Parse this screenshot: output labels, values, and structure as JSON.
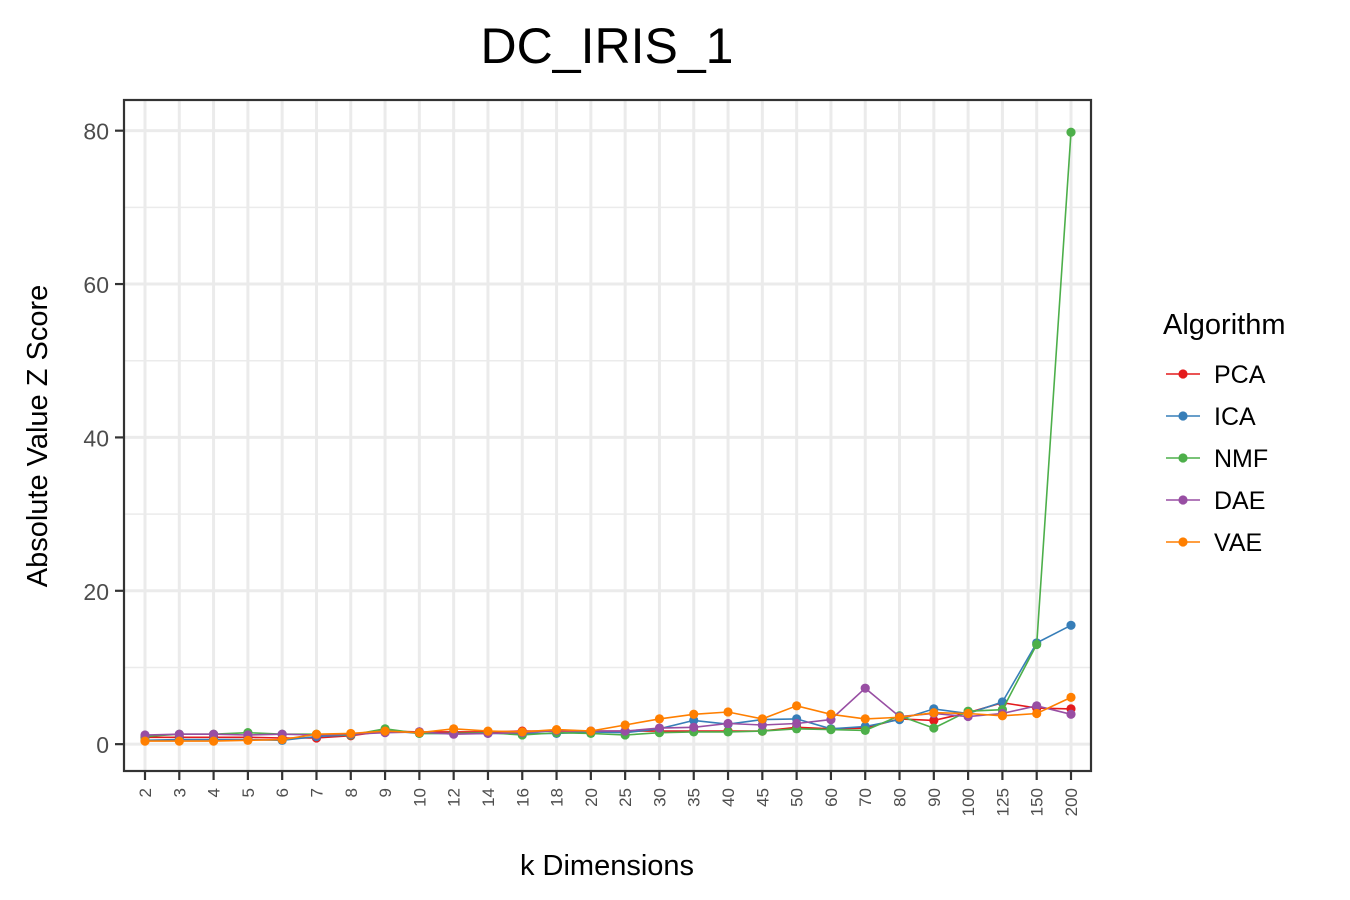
{
  "chart_data": {
    "type": "line",
    "title": "DC_IRIS_1",
    "xlabel": "k Dimensions",
    "ylabel": "Absolute Value Z Score",
    "ylim": [
      -3.5,
      84
    ],
    "yticks": [
      0,
      20,
      40,
      60,
      80
    ],
    "x": [
      "2",
      "3",
      "4",
      "5",
      "6",
      "7",
      "8",
      "9",
      "10",
      "12",
      "14",
      "16",
      "18",
      "20",
      "25",
      "30",
      "35",
      "40",
      "45",
      "50",
      "60",
      "70",
      "80",
      "90",
      "100",
      "125",
      "150",
      "200"
    ],
    "grid": true,
    "legend": {
      "title": "Algorithm",
      "position": "right"
    },
    "series": [
      {
        "name": "PCA",
        "color": "#E41A1C",
        "values": [
          0.9,
          0.9,
          0.9,
          0.9,
          0.8,
          0.8,
          1.1,
          1.7,
          1.6,
          1.6,
          1.6,
          1.7,
          1.7,
          1.7,
          1.7,
          1.7,
          1.7,
          1.7,
          1.7,
          2.2,
          2.0,
          2.1,
          3.3,
          3.1,
          4.1,
          5.4,
          4.7,
          4.6
        ]
      },
      {
        "name": "ICA",
        "color": "#377EB8",
        "values": [
          0.5,
          0.6,
          0.6,
          0.6,
          0.5,
          1.0,
          1.2,
          1.8,
          1.4,
          1.4,
          1.4,
          1.4,
          1.4,
          1.6,
          1.5,
          2.0,
          3.1,
          2.6,
          3.2,
          3.3,
          2.0,
          2.3,
          3.2,
          4.6,
          4.0,
          5.5,
          13.2,
          15.5
        ]
      },
      {
        "name": "NMF",
        "color": "#4DAF4A",
        "values": [
          1.0,
          1.3,
          1.3,
          1.5,
          1.3,
          1.3,
          1.2,
          2.0,
          1.4,
          1.4,
          1.5,
          1.2,
          1.5,
          1.4,
          1.2,
          1.5,
          1.6,
          1.6,
          1.7,
          2.0,
          1.9,
          1.8,
          3.7,
          2.1,
          4.3,
          4.5,
          13.0,
          79.8
        ]
      },
      {
        "name": "DAE",
        "color": "#984EA3",
        "values": [
          1.2,
          1.3,
          1.3,
          1.2,
          1.3,
          1.2,
          1.3,
          1.5,
          1.6,
          1.3,
          1.4,
          1.5,
          1.8,
          1.7,
          1.7,
          2.1,
          2.2,
          2.7,
          2.5,
          2.7,
          3.2,
          7.3,
          3.6,
          4.0,
          3.6,
          4.0,
          5.0,
          3.9
        ]
      },
      {
        "name": "VAE",
        "color": "#FF7F00",
        "values": [
          0.4,
          0.4,
          0.4,
          0.5,
          0.6,
          1.3,
          1.4,
          1.7,
          1.5,
          2.0,
          1.7,
          1.6,
          1.9,
          1.7,
          2.5,
          3.3,
          3.9,
          4.2,
          3.3,
          5.0,
          3.9,
          3.3,
          3.5,
          4.1,
          4.0,
          3.7,
          4.0,
          6.1
        ]
      }
    ]
  }
}
